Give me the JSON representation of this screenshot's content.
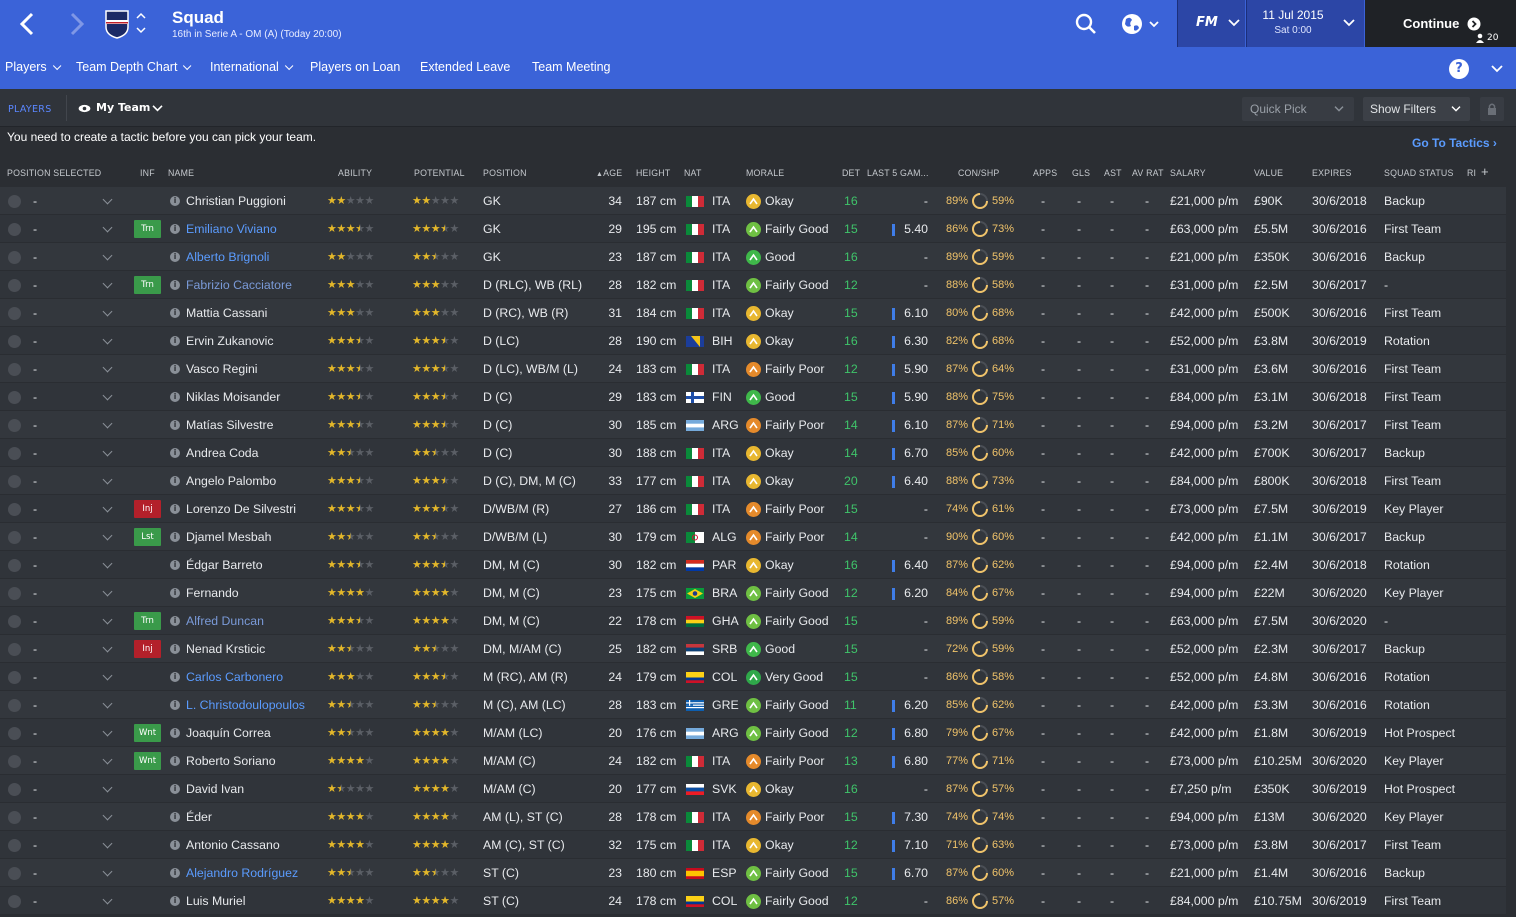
{
  "header": {
    "title": "Squad",
    "subtitle": "16th in Serie A - OM (A) (Today 20:00)",
    "date": "11 Jul 2015",
    "time": "Sat 0:00",
    "fm_label": "FM",
    "continue_label": "Continue",
    "inbox_count": "20"
  },
  "nav": {
    "items": [
      "Players",
      "Team Depth Chart",
      "International",
      "Players on Loan",
      "Extended Leave",
      "Team Meeting"
    ],
    "help": "?"
  },
  "subbar": {
    "players_tab": "PLAYERS",
    "view": "My Team",
    "quick_pick": "Quick Pick",
    "show_filters": "Show Filters"
  },
  "notice": "You need to create a tactic before you can pick your team.",
  "go_to_tactics": "Go To Tactics",
  "columns": [
    "POSITION SELECTED",
    "INF",
    "NAME",
    "ABILITY",
    "POTENTIAL",
    "POSITION",
    "AGE",
    "HEIGHT",
    "NAT",
    "MORALE",
    "DET",
    "LAST 5 GAM...",
    "CON/SHP",
    "APPS",
    "GLS",
    "AST",
    "AV RAT",
    "SALARY",
    "VALUE",
    "EXPIRES",
    "SQUAD STATUS",
    "RI"
  ],
  "colors": {
    "accent": "#3b63d8",
    "star": "#e3b72a",
    "good": "#3fc46a",
    "injury": "#b3202a"
  },
  "players": [
    {
      "sel": "-",
      "inf": "",
      "name": "Christian Puggioni",
      "style": "",
      "ab": 2,
      "pot": 2,
      "pos": "GK",
      "age": "34",
      "height": "187 cm",
      "nat": "ITA",
      "morale": "Okay",
      "det": "16",
      "last5": "-",
      "con": "89%",
      "shp": "59%",
      "apps": "-",
      "gls": "-",
      "ast": "-",
      "av": "-",
      "salary": "£21,000 p/m",
      "value": "£90K",
      "expires": "30/6/2018",
      "status": "Backup"
    },
    {
      "sel": "-",
      "inf": "Trn",
      "name": "Emiliano Viviano",
      "style": "link",
      "ab": 3.5,
      "pot": 3.5,
      "pos": "GK",
      "age": "29",
      "height": "195 cm",
      "nat": "ITA",
      "morale": "Fairly Good",
      "det": "15",
      "last5": "5.40",
      "con": "86%",
      "shp": "73%",
      "apps": "-",
      "gls": "-",
      "ast": "-",
      "av": "-",
      "salary": "£63,000 p/m",
      "value": "£5.5M",
      "expires": "30/6/2016",
      "status": "First Team"
    },
    {
      "sel": "-",
      "inf": "",
      "name": "Alberto Brignoli",
      "style": "link",
      "ab": 2,
      "pot": 2.5,
      "pos": "GK",
      "age": "23",
      "height": "187 cm",
      "nat": "ITA",
      "morale": "Good",
      "det": "16",
      "last5": "-",
      "con": "89%",
      "shp": "59%",
      "apps": "-",
      "gls": "-",
      "ast": "-",
      "av": "-",
      "salary": "£21,000 p/m",
      "value": "£350K",
      "expires": "30/6/2016",
      "status": "Backup"
    },
    {
      "sel": "-",
      "inf": "Trn",
      "name": "Fabrizio Cacciatore",
      "style": "dim",
      "ab": 3,
      "pot": 3,
      "pos": "D (RLC), WB (RL)",
      "age": "28",
      "height": "182 cm",
      "nat": "ITA",
      "morale": "Fairly Good",
      "det": "12",
      "last5": "-",
      "con": "88%",
      "shp": "58%",
      "apps": "-",
      "gls": "-",
      "ast": "-",
      "av": "-",
      "salary": "£31,000 p/m",
      "value": "£2.5M",
      "expires": "30/6/2017",
      "status": "-"
    },
    {
      "sel": "-",
      "inf": "",
      "name": "Mattia Cassani",
      "style": "",
      "ab": 3,
      "pot": 3,
      "pos": "D (RC), WB (R)",
      "age": "31",
      "height": "184 cm",
      "nat": "ITA",
      "morale": "Okay",
      "det": "15",
      "last5": "6.10",
      "con": "80%",
      "shp": "68%",
      "apps": "-",
      "gls": "-",
      "ast": "-",
      "av": "-",
      "salary": "£42,000 p/m",
      "value": "£500K",
      "expires": "30/6/2016",
      "status": "First Team"
    },
    {
      "sel": "-",
      "inf": "",
      "name": "Ervin Zukanovic",
      "style": "",
      "ab": 3.5,
      "pot": 3.5,
      "pos": "D (LC)",
      "age": "28",
      "height": "190 cm",
      "nat": "BIH",
      "morale": "Okay",
      "det": "16",
      "last5": "6.30",
      "con": "82%",
      "shp": "68%",
      "apps": "-",
      "gls": "-",
      "ast": "-",
      "av": "-",
      "salary": "£52,000 p/m",
      "value": "£3.8M",
      "expires": "30/6/2019",
      "status": "Rotation"
    },
    {
      "sel": "-",
      "inf": "",
      "name": "Vasco Regini",
      "style": "",
      "ab": 3.5,
      "pot": 3.5,
      "pos": "D (LC), WB/M (L)",
      "age": "24",
      "height": "183 cm",
      "nat": "ITA",
      "morale": "Fairly Poor",
      "det": "12",
      "last5": "5.90",
      "con": "87%",
      "shp": "64%",
      "apps": "-",
      "gls": "-",
      "ast": "-",
      "av": "-",
      "salary": "£31,000 p/m",
      "value": "£3.6M",
      "expires": "30/6/2016",
      "status": "First Team"
    },
    {
      "sel": "-",
      "inf": "",
      "name": "Niklas Moisander",
      "style": "",
      "ab": 3.5,
      "pot": 3.5,
      "pos": "D (C)",
      "age": "29",
      "height": "183 cm",
      "nat": "FIN",
      "morale": "Good",
      "det": "15",
      "last5": "5.90",
      "con": "88%",
      "shp": "75%",
      "apps": "-",
      "gls": "-",
      "ast": "-",
      "av": "-",
      "salary": "£84,000 p/m",
      "value": "£3.1M",
      "expires": "30/6/2018",
      "status": "First Team"
    },
    {
      "sel": "-",
      "inf": "",
      "name": "Matías Silvestre",
      "style": "",
      "ab": 3.5,
      "pot": 3.5,
      "pos": "D (C)",
      "age": "30",
      "height": "185 cm",
      "nat": "ARG",
      "morale": "Fairly Poor",
      "det": "14",
      "last5": "6.10",
      "con": "87%",
      "shp": "71%",
      "apps": "-",
      "gls": "-",
      "ast": "-",
      "av": "-",
      "salary": "£94,000 p/m",
      "value": "£3.2M",
      "expires": "30/6/2017",
      "status": "First Team"
    },
    {
      "sel": "-",
      "inf": "",
      "name": "Andrea Coda",
      "style": "",
      "ab": 2.5,
      "pot": 2.5,
      "pos": "D (C)",
      "age": "30",
      "height": "188 cm",
      "nat": "ITA",
      "morale": "Okay",
      "det": "14",
      "last5": "6.70",
      "con": "85%",
      "shp": "60%",
      "apps": "-",
      "gls": "-",
      "ast": "-",
      "av": "-",
      "salary": "£42,000 p/m",
      "value": "£700K",
      "expires": "30/6/2017",
      "status": "Backup"
    },
    {
      "sel": "-",
      "inf": "",
      "name": "Angelo Palombo",
      "style": "",
      "ab": 3.5,
      "pot": 3.5,
      "pos": "D (C), DM, M (C)",
      "age": "33",
      "height": "177 cm",
      "nat": "ITA",
      "morale": "Okay",
      "det": "20",
      "last5": "6.40",
      "con": "88%",
      "shp": "73%",
      "apps": "-",
      "gls": "-",
      "ast": "-",
      "av": "-",
      "salary": "£84,000 p/m",
      "value": "£800K",
      "expires": "30/6/2018",
      "status": "First Team"
    },
    {
      "sel": "-",
      "inf": "Inj",
      "name": "Lorenzo De Silvestri",
      "style": "",
      "ab": 3.5,
      "pot": 3.5,
      "pos": "D/WB/M (R)",
      "age": "27",
      "height": "186 cm",
      "nat": "ITA",
      "morale": "Fairly Poor",
      "det": "15",
      "last5": "-",
      "con": "74%",
      "shp": "61%",
      "apps": "-",
      "gls": "-",
      "ast": "-",
      "av": "-",
      "salary": "£73,000 p/m",
      "value": "£7.5M",
      "expires": "30/6/2019",
      "status": "Key Player"
    },
    {
      "sel": "-",
      "inf": "Lst",
      "name": "Djamel Mesbah",
      "style": "",
      "ab": 2.5,
      "pot": 2.5,
      "pos": "D/WB/M (L)",
      "age": "30",
      "height": "179 cm",
      "nat": "ALG",
      "morale": "Fairly Poor",
      "det": "14",
      "last5": "-",
      "con": "90%",
      "shp": "60%",
      "apps": "-",
      "gls": "-",
      "ast": "-",
      "av": "-",
      "salary": "£42,000 p/m",
      "value": "£1.1M",
      "expires": "30/6/2017",
      "status": "Backup"
    },
    {
      "sel": "-",
      "inf": "",
      "name": "Édgar Barreto",
      "style": "",
      "ab": 3.5,
      "pot": 3.5,
      "pos": "DM, M (C)",
      "age": "30",
      "height": "182 cm",
      "nat": "PAR",
      "morale": "Okay",
      "det": "16",
      "last5": "6.40",
      "con": "87%",
      "shp": "62%",
      "apps": "-",
      "gls": "-",
      "ast": "-",
      "av": "-",
      "salary": "£94,000 p/m",
      "value": "£2.4M",
      "expires": "30/6/2018",
      "status": "Rotation"
    },
    {
      "sel": "-",
      "inf": "",
      "name": "Fernando",
      "style": "",
      "ab": 4,
      "pot": 4,
      "pos": "DM, M (C)",
      "age": "23",
      "height": "175 cm",
      "nat": "BRA",
      "morale": "Fairly Good",
      "det": "12",
      "last5": "6.20",
      "con": "84%",
      "shp": "67%",
      "apps": "-",
      "gls": "-",
      "ast": "-",
      "av": "-",
      "salary": "£94,000 p/m",
      "value": "£22M",
      "expires": "30/6/2020",
      "status": "Key Player"
    },
    {
      "sel": "-",
      "inf": "Trn",
      "name": "Alfred Duncan",
      "style": "dim",
      "ab": 3.5,
      "pot": 4,
      "pos": "DM, M (C)",
      "age": "22",
      "height": "178 cm",
      "nat": "GHA",
      "morale": "Fairly Good",
      "det": "15",
      "last5": "-",
      "con": "89%",
      "shp": "59%",
      "apps": "-",
      "gls": "-",
      "ast": "-",
      "av": "-",
      "salary": "£63,000 p/m",
      "value": "£7.5M",
      "expires": "30/6/2020",
      "status": "-"
    },
    {
      "sel": "-",
      "inf": "Inj",
      "name": "Nenad Krsticic",
      "style": "",
      "ab": 2.5,
      "pot": 2.5,
      "pos": "DM, M/AM (C)",
      "age": "25",
      "height": "182 cm",
      "nat": "SRB",
      "morale": "Good",
      "det": "15",
      "last5": "-",
      "con": "72%",
      "shp": "59%",
      "apps": "-",
      "gls": "-",
      "ast": "-",
      "av": "-",
      "salary": "£52,000 p/m",
      "value": "£2.3M",
      "expires": "30/6/2017",
      "status": "Backup"
    },
    {
      "sel": "-",
      "inf": "",
      "name": "Carlos Carbonero",
      "style": "link",
      "ab": 3,
      "pot": 3.5,
      "pos": "M (RC), AM (R)",
      "age": "24",
      "height": "179 cm",
      "nat": "COL",
      "morale": "Very Good",
      "det": "15",
      "last5": "-",
      "con": "86%",
      "shp": "58%",
      "apps": "-",
      "gls": "-",
      "ast": "-",
      "av": "-",
      "salary": "£52,000 p/m",
      "value": "£4.8M",
      "expires": "30/6/2016",
      "status": "Rotation"
    },
    {
      "sel": "-",
      "inf": "",
      "name": "L. Christodoulopoulos",
      "style": "link",
      "ab": 2.5,
      "pot": 2.5,
      "pos": "M (C), AM (LC)",
      "age": "28",
      "height": "183 cm",
      "nat": "GRE",
      "morale": "Fairly Good",
      "det": "11",
      "last5": "6.20",
      "con": "85%",
      "shp": "62%",
      "apps": "-",
      "gls": "-",
      "ast": "-",
      "av": "-",
      "salary": "£42,000 p/m",
      "value": "£3.3M",
      "expires": "30/6/2016",
      "status": "Rotation"
    },
    {
      "sel": "-",
      "inf": "Wnt",
      "name": "Joaquín Correa",
      "style": "",
      "ab": 2.5,
      "pot": 4,
      "pos": "M/AM (LC)",
      "age": "20",
      "height": "176 cm",
      "nat": "ARG",
      "morale": "Fairly Good",
      "det": "12",
      "last5": "6.80",
      "con": "79%",
      "shp": "67%",
      "apps": "-",
      "gls": "-",
      "ast": "-",
      "av": "-",
      "salary": "£42,000 p/m",
      "value": "£1.8M",
      "expires": "30/6/2019",
      "status": "Hot Prospect"
    },
    {
      "sel": "-",
      "inf": "Wnt",
      "name": "Roberto Soriano",
      "style": "",
      "ab": 4,
      "pot": 4,
      "pos": "M/AM (C)",
      "age": "24",
      "height": "182 cm",
      "nat": "ITA",
      "morale": "Fairly Poor",
      "det": "13",
      "last5": "6.80",
      "con": "77%",
      "shp": "71%",
      "apps": "-",
      "gls": "-",
      "ast": "-",
      "av": "-",
      "salary": "£73,000 p/m",
      "value": "£10.25M",
      "expires": "30/6/2020",
      "status": "Key Player"
    },
    {
      "sel": "-",
      "inf": "",
      "name": "David Ivan",
      "style": "",
      "ab": 1.5,
      "pot": 4,
      "pos": "M/AM (C)",
      "age": "20",
      "height": "177 cm",
      "nat": "SVK",
      "morale": "Okay",
      "det": "16",
      "last5": "-",
      "con": "87%",
      "shp": "57%",
      "apps": "-",
      "gls": "-",
      "ast": "-",
      "av": "-",
      "salary": "£7,250 p/m",
      "value": "£350K",
      "expires": "30/6/2019",
      "status": "Hot Prospect"
    },
    {
      "sel": "-",
      "inf": "",
      "name": "Éder",
      "style": "",
      "ab": 4,
      "pot": 4,
      "pos": "AM (L), ST (C)",
      "age": "28",
      "height": "178 cm",
      "nat": "ITA",
      "morale": "Fairly Poor",
      "det": "15",
      "last5": "7.30",
      "con": "74%",
      "shp": "74%",
      "apps": "-",
      "gls": "-",
      "ast": "-",
      "av": "-",
      "salary": "£94,000 p/m",
      "value": "£13M",
      "expires": "30/6/2020",
      "status": "Key Player"
    },
    {
      "sel": "-",
      "inf": "",
      "name": "Antonio Cassano",
      "style": "",
      "ab": 4,
      "pot": 4,
      "pos": "AM (C), ST (C)",
      "age": "32",
      "height": "175 cm",
      "nat": "ITA",
      "morale": "Okay",
      "det": "12",
      "last5": "7.10",
      "con": "71%",
      "shp": "63%",
      "apps": "-",
      "gls": "-",
      "ast": "-",
      "av": "-",
      "salary": "£73,000 p/m",
      "value": "£3.8M",
      "expires": "30/6/2017",
      "status": "First Team"
    },
    {
      "sel": "-",
      "inf": "",
      "name": "Alejandro Rodríguez",
      "style": "link",
      "ab": 2.5,
      "pot": 2.5,
      "pos": "ST (C)",
      "age": "23",
      "height": "180 cm",
      "nat": "ESP",
      "morale": "Fairly Good",
      "det": "15",
      "last5": "6.70",
      "con": "87%",
      "shp": "60%",
      "apps": "-",
      "gls": "-",
      "ast": "-",
      "av": "-",
      "salary": "£21,000 p/m",
      "value": "£1.4M",
      "expires": "30/6/2016",
      "status": "Backup"
    },
    {
      "sel": "-",
      "inf": "",
      "name": "Luis Muriel",
      "style": "",
      "ab": 4,
      "pot": 4,
      "pos": "ST (C)",
      "age": "24",
      "height": "178 cm",
      "nat": "COL",
      "morale": "Fairly Good",
      "det": "12",
      "last5": "-",
      "con": "86%",
      "shp": "57%",
      "apps": "-",
      "gls": "-",
      "ast": "-",
      "av": "-",
      "salary": "£84,000 p/m",
      "value": "£10.75M",
      "expires": "30/6/2019",
      "status": "First Team"
    }
  ]
}
